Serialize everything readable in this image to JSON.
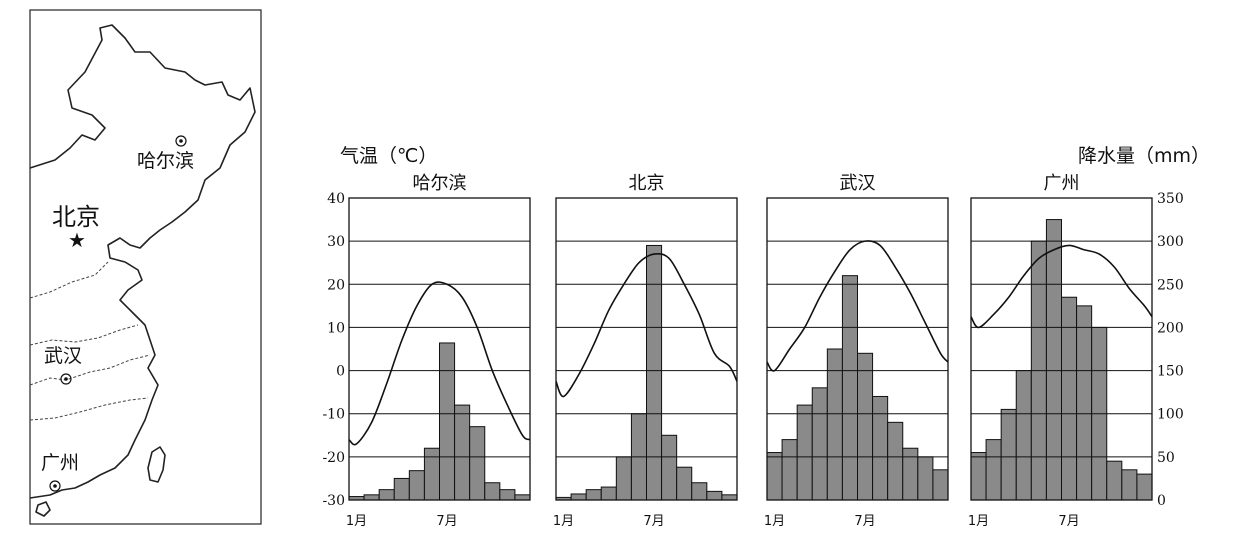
{
  "map": {
    "cities": {
      "harbin": "哈尔滨",
      "beijing": "北京",
      "wuhan": "武汉",
      "guangzhou": "广州"
    }
  },
  "chart_data": {
    "type": "bar",
    "left_axis": {
      "title": "气温（℃）",
      "ticks": [
        "40",
        "30",
        "20",
        "10",
        "0",
        "-10",
        "-20",
        "-30"
      ],
      "range": [
        -30,
        40
      ]
    },
    "right_axis": {
      "title": "降水量（mm）",
      "ticks": [
        "350",
        "300",
        "250",
        "200",
        "150",
        "100",
        "50",
        "0"
      ],
      "range": [
        0,
        350
      ]
    },
    "x_labels": [
      "1月",
      "7月"
    ],
    "panels": [
      {
        "name": "哈尔滨",
        "precipitation": [
          4,
          6,
          12,
          25,
          34,
          60,
          182,
          110,
          85,
          20,
          12,
          6
        ],
        "temperature": [
          -17,
          -12,
          -3,
          7,
          15,
          20,
          20,
          17,
          10,
          0,
          -8,
          -15
        ]
      },
      {
        "name": "北京",
        "precipitation": [
          3,
          7,
          12,
          15,
          50,
          100,
          295,
          75,
          38,
          20,
          10,
          6
        ],
        "temperature": [
          -6,
          -1,
          6,
          14,
          20,
          25,
          27,
          26,
          20,
          13,
          4,
          1
        ]
      },
      {
        "name": "武汉",
        "precipitation": [
          55,
          70,
          110,
          130,
          175,
          260,
          170,
          120,
          90,
          60,
          50,
          35
        ],
        "temperature": [
          0,
          5,
          10,
          17,
          23,
          28,
          30,
          29,
          24,
          18,
          11,
          4
        ]
      },
      {
        "name": "广州",
        "precipitation": [
          55,
          70,
          105,
          150,
          300,
          325,
          235,
          225,
          200,
          45,
          35,
          30
        ],
        "temperature": [
          10,
          13,
          17,
          22,
          26,
          28,
          29,
          28,
          27,
          24,
          19,
          15
        ]
      }
    ]
  }
}
